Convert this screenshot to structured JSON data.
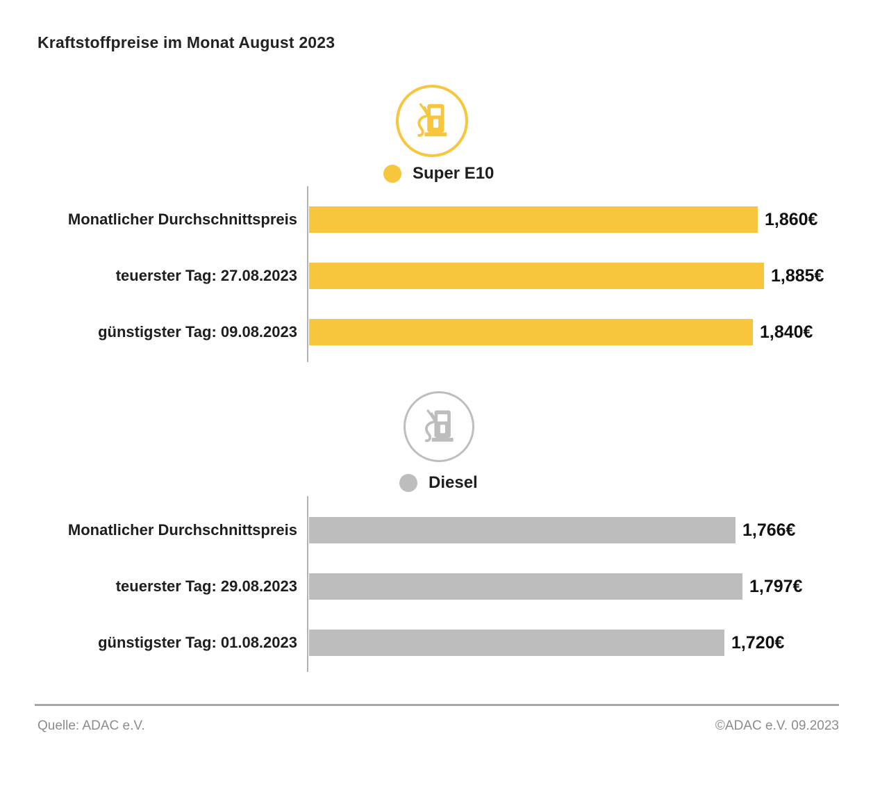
{
  "page": {
    "title": "Kraftstoffpreise im Monat August 2023",
    "footer": {
      "source": "Quelle: ADAC e.V.",
      "copyright": "©ADAC e.V. 09.2023"
    }
  },
  "colors": {
    "super_e10": "#F8C63C",
    "diesel": "#BDBDBD",
    "axis": "#B3B3B3",
    "heading_text": "#222222",
    "footer_text": "#8C8C8C",
    "divider": "#A6A6A6"
  },
  "chart_data": [
    {
      "type": "bar",
      "orientation": "horizontal",
      "title": "Super E10",
      "icon": "fuel-pump-icon",
      "legend": {
        "label": "Super E10",
        "position": "top-center",
        "swatch_color": "#F8C63C"
      },
      "bar_color": "#F8C63C",
      "unit": "€ per liter",
      "grid": false,
      "xlim": [
        0,
        1.885
      ],
      "categories": [
        "Monatlicher Durchschnittspreis",
        "teuerster Tag: 27.08.2023",
        "günstigster Tag: 09.08.2023"
      ],
      "values": [
        1.86,
        1.885,
        1.84
      ],
      "value_labels": [
        "1,860€",
        "1,885€",
        "1,840€"
      ]
    },
    {
      "type": "bar",
      "orientation": "horizontal",
      "title": "Diesel",
      "icon": "fuel-pump-icon",
      "legend": {
        "label": "Diesel",
        "position": "top-center",
        "swatch_color": "#BDBDBD"
      },
      "bar_color": "#BDBDBD",
      "unit": "€ per liter",
      "grid": false,
      "xlim": [
        0,
        1.885
      ],
      "categories": [
        "Monatlicher Durchschnittspreis",
        "teuerster Tag: 29.08.2023",
        "günstigster Tag: 01.08.2023"
      ],
      "values": [
        1.766,
        1.797,
        1.72
      ],
      "value_labels": [
        "1,766€",
        "1,797€",
        "1,720€"
      ]
    }
  ]
}
